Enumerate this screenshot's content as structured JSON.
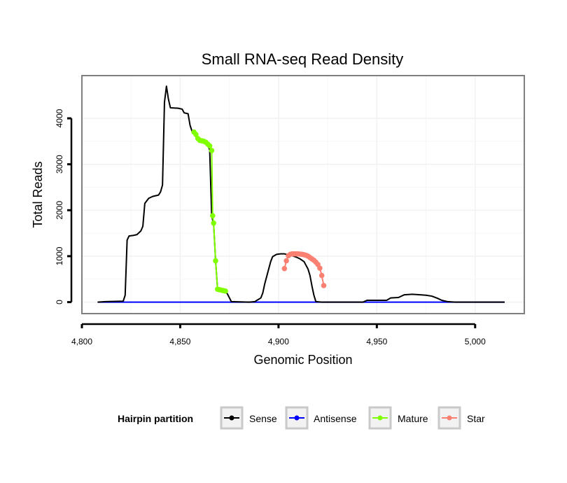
{
  "chart_data": {
    "type": "line",
    "title": "Small RNA-seq Read Density",
    "xlabel": "Genomic Position",
    "ylabel": "Total Reads",
    "xlim": [
      4800,
      5025
    ],
    "ylim": [
      -250,
      4930
    ],
    "x_ticks": [
      4800,
      4850,
      4900,
      4950,
      5000
    ],
    "x_tick_labels": [
      "4,800",
      "4,850",
      "4,900",
      "4,950",
      "5,000"
    ],
    "y_ticks": [
      0,
      1000,
      2000,
      3000,
      4000
    ],
    "y_tick_labels": [
      "0",
      "1000",
      "2000",
      "3000",
      "4000"
    ],
    "grid": true,
    "legend": {
      "title": "Hairpin partition",
      "placement": "bottom",
      "entries": [
        {
          "name": "Sense",
          "color": "#000000"
        },
        {
          "name": "Antisense",
          "color": "#0000ff"
        },
        {
          "name": "Mature",
          "color": "#7fff00"
        },
        {
          "name": "Star",
          "color": "#fa8072"
        }
      ]
    },
    "series": [
      {
        "name": "Sense",
        "color": "#000000",
        "points": [
          [
            4808,
            0
          ],
          [
            4812,
            10
          ],
          [
            4821,
            20
          ],
          [
            4822,
            150
          ],
          [
            4823,
            1350
          ],
          [
            4824,
            1440
          ],
          [
            4826,
            1450
          ],
          [
            4828,
            1470
          ],
          [
            4830,
            1550
          ],
          [
            4831,
            1650
          ],
          [
            4832,
            2150
          ],
          [
            4834,
            2260
          ],
          [
            4836,
            2300
          ],
          [
            4839,
            2330
          ],
          [
            4840,
            2400
          ],
          [
            4841,
            2550
          ],
          [
            4842,
            4350
          ],
          [
            4843,
            4700
          ],
          [
            4844,
            4420
          ],
          [
            4845,
            4230
          ],
          [
            4849,
            4220
          ],
          [
            4851,
            4200
          ],
          [
            4852,
            4120
          ],
          [
            4854,
            4100
          ],
          [
            4855,
            3850
          ],
          [
            4856,
            3720
          ],
          [
            4857,
            3680
          ],
          [
            4858,
            3600
          ],
          [
            4859,
            3520
          ],
          [
            4860,
            3500
          ],
          [
            4862,
            3490
          ],
          [
            4864,
            3420
          ],
          [
            4865,
            3310
          ],
          [
            4866,
            1880
          ],
          [
            4867,
            1700
          ],
          [
            4868,
            900
          ],
          [
            4869,
            280
          ],
          [
            4871,
            260
          ],
          [
            4873,
            240
          ],
          [
            4874,
            180
          ],
          [
            4876,
            10
          ],
          [
            4885,
            0
          ],
          [
            4888,
            10
          ],
          [
            4889,
            40
          ],
          [
            4891,
            90
          ],
          [
            4892,
            200
          ],
          [
            4893,
            400
          ],
          [
            4894,
            560
          ],
          [
            4895,
            720
          ],
          [
            4896,
            880
          ],
          [
            4897,
            990
          ],
          [
            4899,
            1040
          ],
          [
            4901,
            1050
          ],
          [
            4903,
            1050
          ],
          [
            4905,
            1030
          ],
          [
            4907,
            1010
          ],
          [
            4909,
            980
          ],
          [
            4911,
            940
          ],
          [
            4913,
            880
          ],
          [
            4915,
            720
          ],
          [
            4916,
            580
          ],
          [
            4917,
            350
          ],
          [
            4918,
            150
          ],
          [
            4919,
            10
          ],
          [
            4922,
            0
          ],
          [
            4943,
            0
          ],
          [
            4945,
            40
          ],
          [
            4955,
            40
          ],
          [
            4957,
            90
          ],
          [
            4961,
            100
          ],
          [
            4964,
            160
          ],
          [
            4968,
            170
          ],
          [
            4972,
            160
          ],
          [
            4975,
            150
          ],
          [
            4978,
            130
          ],
          [
            4981,
            80
          ],
          [
            4983,
            40
          ],
          [
            4986,
            10
          ],
          [
            4990,
            0
          ],
          [
            5015,
            0
          ]
        ]
      },
      {
        "name": "Antisense",
        "color": "#0000ff",
        "points": [
          [
            4808,
            0
          ],
          [
            5015,
            0
          ]
        ]
      },
      {
        "name": "Mature",
        "color": "#7fff00",
        "points": [
          [
            4857,
            3700
          ],
          [
            4858,
            3650
          ],
          [
            4859,
            3560
          ],
          [
            4860,
            3520
          ],
          [
            4861,
            3510
          ],
          [
            4862,
            3500
          ],
          [
            4863,
            3480
          ],
          [
            4864,
            3440
          ],
          [
            4865,
            3400
          ],
          [
            4866,
            3300
          ],
          [
            4866.5,
            1880
          ],
          [
            4867,
            1720
          ],
          [
            4868,
            900
          ],
          [
            4869,
            280
          ],
          [
            4870,
            270
          ],
          [
            4871,
            260
          ],
          [
            4872,
            250
          ],
          [
            4873,
            240
          ]
        ]
      },
      {
        "name": "Star",
        "color": "#fa8072",
        "points": [
          [
            4903,
            730
          ],
          [
            4904,
            900
          ],
          [
            4905,
            1010
          ],
          [
            4906,
            1040
          ],
          [
            4907,
            1050
          ],
          [
            4908,
            1050
          ],
          [
            4909,
            1050
          ],
          [
            4910,
            1050
          ],
          [
            4911,
            1045
          ],
          [
            4912,
            1040
          ],
          [
            4913,
            1030
          ],
          [
            4914,
            1020
          ],
          [
            4915,
            1000
          ],
          [
            4916,
            970
          ],
          [
            4917,
            940
          ],
          [
            4918,
            910
          ],
          [
            4919,
            870
          ],
          [
            4920,
            820
          ],
          [
            4921,
            740
          ],
          [
            4922,
            580
          ],
          [
            4923,
            360
          ]
        ]
      }
    ]
  }
}
